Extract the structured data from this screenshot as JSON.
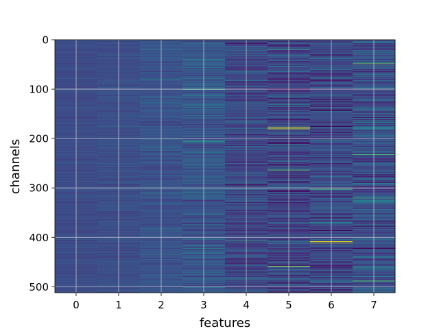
{
  "chart_data": {
    "type": "heatmap",
    "title": "",
    "xlabel": "features",
    "ylabel": "channels",
    "x_categories": [
      0,
      1,
      2,
      3,
      4,
      5,
      6,
      7
    ],
    "y_range": [
      0,
      511
    ],
    "y_axis_inverted": true,
    "y_ticks": [
      0,
      100,
      200,
      300,
      400,
      500
    ],
    "grid": true,
    "colormap": "viridis",
    "colormap_stops": [
      "#440154",
      "#472d7b",
      "#3b528b",
      "#2c728e",
      "#21918c",
      "#28ae80",
      "#5ec962",
      "#addc30",
      "#fde725"
    ],
    "features": [
      {
        "feature": 0,
        "mean": 0.23,
        "spread": 0.04
      },
      {
        "feature": 1,
        "mean": 0.24,
        "spread": 0.05
      },
      {
        "feature": 2,
        "mean": 0.26,
        "spread": 0.07
      },
      {
        "feature": 3,
        "mean": 0.27,
        "spread": 0.11
      },
      {
        "feature": 4,
        "mean": 0.22,
        "spread": 0.14
      },
      {
        "feature": 5,
        "mean": 0.21,
        "spread": 0.17
      },
      {
        "feature": 6,
        "mean": 0.22,
        "spread": 0.16
      },
      {
        "feature": 7,
        "mean": 0.25,
        "spread": 0.17
      }
    ],
    "bright_channels": [
      {
        "feature": 3,
        "channel": 100,
        "value": 0.6
      },
      {
        "feature": 3,
        "channel": 205,
        "value": 0.58
      },
      {
        "feature": 4,
        "channel": 405,
        "value": 0.68
      },
      {
        "feature": 5,
        "channel": 20,
        "value": 0.65
      },
      {
        "feature": 5,
        "channel": 177,
        "value": 0.95
      },
      {
        "feature": 5,
        "channel": 180,
        "value": 0.92
      },
      {
        "feature": 5,
        "channel": 263,
        "value": 0.72
      },
      {
        "feature": 5,
        "channel": 458,
        "value": 0.8
      },
      {
        "feature": 6,
        "channel": 302,
        "value": 0.7
      },
      {
        "feature": 6,
        "channel": 408,
        "value": 0.97
      },
      {
        "feature": 6,
        "channel": 411,
        "value": 0.85
      },
      {
        "feature": 7,
        "channel": 48,
        "value": 0.78
      },
      {
        "feature": 7,
        "channel": 232,
        "value": 0.68
      },
      {
        "feature": 7,
        "channel": 320,
        "value": 0.65
      },
      {
        "feature": 7,
        "channel": 488,
        "value": 0.72
      }
    ],
    "dark_channels": [
      {
        "feature": 5,
        "channel": 45,
        "value": 0.0
      },
      {
        "feature": 6,
        "channel": 30,
        "value": 0.0
      },
      {
        "feature": 6,
        "channel": 175,
        "value": 0.0
      },
      {
        "feature": 7,
        "channel": 215,
        "value": 0.02
      },
      {
        "feature": 4,
        "channel": 470,
        "value": 0.03
      },
      {
        "feature": 6,
        "channel": 470,
        "value": 0.02
      },
      {
        "feature": 5,
        "channel": 210,
        "value": 0.04
      }
    ]
  }
}
